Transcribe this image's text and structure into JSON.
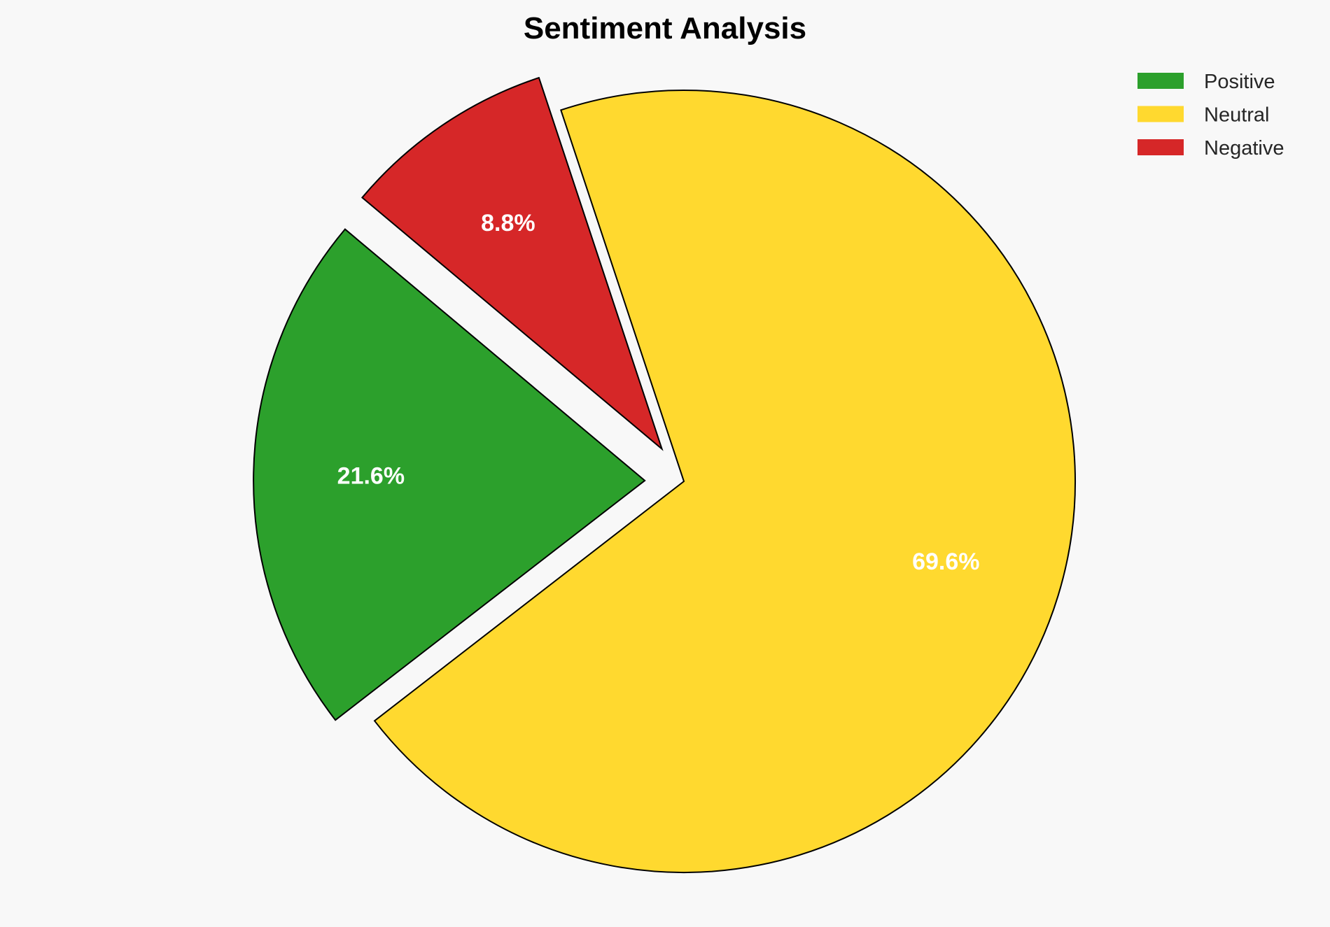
{
  "chart_data": {
    "type": "pie",
    "title": "Sentiment Analysis",
    "labels": [
      "Positive",
      "Neutral",
      "Negative"
    ],
    "values": [
      21.6,
      69.6,
      8.8
    ],
    "value_labels": [
      "21.6%",
      "69.6%",
      "8.8%"
    ],
    "colors": [
      "#2ca02c",
      "#ffd92f",
      "#d62728"
    ],
    "explode": [
      0.1,
      0,
      0.1
    ],
    "start_angle": 140,
    "edge_color": "#000000",
    "legend_placement": "top-right"
  }
}
